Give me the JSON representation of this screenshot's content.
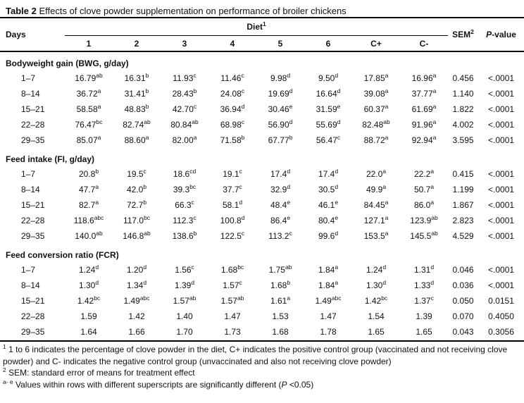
{
  "colors": {
    "text": "#111111",
    "background": "#ffffff",
    "rule": "#000000"
  },
  "title": {
    "label": "Table 2",
    "caption": " Effects of clove powder supplementation on performance of broiler chickens"
  },
  "header": {
    "days": "Days",
    "diet": "Diet",
    "diet_sup": "1",
    "diet_cols": [
      "1",
      "2",
      "3",
      "4",
      "5",
      "6",
      "C+",
      "C-"
    ],
    "sem": "SEM",
    "sem_sup": "2",
    "p_italic": "P",
    "p_rest": "-value"
  },
  "sections": [
    {
      "label": "Bodyweight gain (BWG, g/day)",
      "rows": [
        {
          "days": "1–7",
          "cells": [
            {
              "v": "16.79",
              "s": "ab"
            },
            {
              "v": "16.31",
              "s": "b"
            },
            {
              "v": "11.93",
              "s": "c"
            },
            {
              "v": "11.46",
              "s": "c"
            },
            {
              "v": "9.98",
              "s": "d"
            },
            {
              "v": "9.50",
              "s": "d"
            },
            {
              "v": "17.85",
              "s": "a"
            },
            {
              "v": "16.96",
              "s": "a"
            }
          ],
          "sem": "0.456",
          "p": "<.0001"
        },
        {
          "days": "8–14",
          "cells": [
            {
              "v": "36.72",
              "s": "a"
            },
            {
              "v": "31.41",
              "s": "b"
            },
            {
              "v": "28.43",
              "s": "b"
            },
            {
              "v": "24.08",
              "s": "c"
            },
            {
              "v": "19.69",
              "s": "d"
            },
            {
              "v": "16.64",
              "s": "d"
            },
            {
              "v": "39.08",
              "s": "a"
            },
            {
              "v": "37.77",
              "s": "a"
            }
          ],
          "sem": "1.140",
          "p": "<.0001"
        },
        {
          "days": "15–21",
          "cells": [
            {
              "v": "58.58",
              "s": "a"
            },
            {
              "v": "48.83",
              "s": "b"
            },
            {
              "v": "42.70",
              "s": "c"
            },
            {
              "v": "36.94",
              "s": "d"
            },
            {
              "v": "30.46",
              "s": "e"
            },
            {
              "v": "31.59",
              "s": "e"
            },
            {
              "v": "60.37",
              "s": "a"
            },
            {
              "v": "61.69",
              "s": "a"
            }
          ],
          "sem": "1.822",
          "p": "<.0001"
        },
        {
          "days": "22–28",
          "cells": [
            {
              "v": "76.47",
              "s": "bc"
            },
            {
              "v": "82.74",
              "s": "ab"
            },
            {
              "v": "80.84",
              "s": "ab"
            },
            {
              "v": "68.98",
              "s": "c"
            },
            {
              "v": "56.90",
              "s": "d"
            },
            {
              "v": "55.69",
              "s": "d"
            },
            {
              "v": "82.48",
              "s": "ab"
            },
            {
              "v": "91.96",
              "s": "a"
            }
          ],
          "sem": "4.002",
          "p": "<.0001"
        },
        {
          "days": "29–35",
          "cells": [
            {
              "v": "85.07",
              "s": "a"
            },
            {
              "v": "88.60",
              "s": "a"
            },
            {
              "v": "82.00",
              "s": "a"
            },
            {
              "v": "71.58",
              "s": "b"
            },
            {
              "v": "67.77",
              "s": "b"
            },
            {
              "v": "56.47",
              "s": "c"
            },
            {
              "v": "88.72",
              "s": "a"
            },
            {
              "v": "92.94",
              "s": "a"
            }
          ],
          "sem": "3.595",
          "p": "<.0001"
        }
      ]
    },
    {
      "label": "Feed intake (FI, g/day)",
      "rows": [
        {
          "days": "1–7",
          "cells": [
            {
              "v": "20.8",
              "s": "b"
            },
            {
              "v": "19.5",
              "s": "c"
            },
            {
              "v": "18.6",
              "s": "cd"
            },
            {
              "v": "19.1",
              "s": "c"
            },
            {
              "v": "17.4",
              "s": "d"
            },
            {
              "v": "17.4",
              "s": "d"
            },
            {
              "v": "22.0",
              "s": "a"
            },
            {
              "v": "22.2",
              "s": "a"
            }
          ],
          "sem": "0.415",
          "p": "<.0001"
        },
        {
          "days": "8–14",
          "cells": [
            {
              "v": "47.7",
              "s": "a"
            },
            {
              "v": "42.0",
              "s": "b"
            },
            {
              "v": "39.3",
              "s": "bc"
            },
            {
              "v": "37.7",
              "s": "c"
            },
            {
              "v": "32.9",
              "s": "d"
            },
            {
              "v": "30.5",
              "s": "d"
            },
            {
              "v": "49.9",
              "s": "a"
            },
            {
              "v": "50.7",
              "s": "a"
            }
          ],
          "sem": "1.199",
          "p": "<.0001"
        },
        {
          "days": "15–21",
          "cells": [
            {
              "v": "82.7",
              "s": "a"
            },
            {
              "v": "72.7",
              "s": "b"
            },
            {
              "v": "66.3",
              "s": "c"
            },
            {
              "v": "58.1",
              "s": "d"
            },
            {
              "v": "48.4",
              "s": "e"
            },
            {
              "v": "46.1",
              "s": "e"
            },
            {
              "v": "84.45",
              "s": "a"
            },
            {
              "v": "86.0",
              "s": "a"
            }
          ],
          "sem": "1.867",
          "p": "<.0001"
        },
        {
          "days": "22–28",
          "cells": [
            {
              "v": "118.6",
              "s": "abc"
            },
            {
              "v": "117.0",
              "s": "bc"
            },
            {
              "v": "112.3",
              "s": "c"
            },
            {
              "v": "100.8",
              "s": "d"
            },
            {
              "v": "86.4",
              "s": "e"
            },
            {
              "v": "80.4",
              "s": "e"
            },
            {
              "v": "127.1",
              "s": "a"
            },
            {
              "v": "123.9",
              "s": "ab"
            }
          ],
          "sem": "2.823",
          "p": "<.0001"
        },
        {
          "days": "29–35",
          "cells": [
            {
              "v": "140.0",
              "s": "ab"
            },
            {
              "v": "146.8",
              "s": "ab"
            },
            {
              "v": "138.6",
              "s": "b"
            },
            {
              "v": "122.5",
              "s": "c"
            },
            {
              "v": "113.2",
              "s": "c"
            },
            {
              "v": "99.6",
              "s": "d"
            },
            {
              "v": "153.5",
              "s": "a"
            },
            {
              "v": "145.5",
              "s": "ab"
            }
          ],
          "sem": "4.529",
          "p": "<.0001"
        }
      ]
    },
    {
      "label": "Feed conversion ratio (FCR)",
      "rows": [
        {
          "days": "1–7",
          "cells": [
            {
              "v": "1.24",
              "s": "d"
            },
            {
              "v": "1.20",
              "s": "d"
            },
            {
              "v": "1.56",
              "s": "c"
            },
            {
              "v": "1.68",
              "s": "bc"
            },
            {
              "v": "1.75",
              "s": "ab"
            },
            {
              "v": "1.84",
              "s": "a"
            },
            {
              "v": "1.24",
              "s": "d"
            },
            {
              "v": "1.31",
              "s": "d"
            }
          ],
          "sem": "0.046",
          "p": "<.0001"
        },
        {
          "days": "8–14",
          "cells": [
            {
              "v": "1.30",
              "s": "d"
            },
            {
              "v": "1.34",
              "s": "d"
            },
            {
              "v": "1.39",
              "s": "d"
            },
            {
              "v": "1.57",
              "s": "c"
            },
            {
              "v": "1.68",
              "s": "b"
            },
            {
              "v": "1.84",
              "s": "a"
            },
            {
              "v": "1.30",
              "s": "d"
            },
            {
              "v": "1.33",
              "s": "d"
            }
          ],
          "sem": "0.036",
          "p": "<.0001"
        },
        {
          "days": "15–21",
          "cells": [
            {
              "v": "1.42",
              "s": "bc"
            },
            {
              "v": "1.49",
              "s": "abc"
            },
            {
              "v": "1.57",
              "s": "ab"
            },
            {
              "v": "1.57",
              "s": "ab"
            },
            {
              "v": "1.61",
              "s": "a"
            },
            {
              "v": "1.49",
              "s": "abc"
            },
            {
              "v": "1.42",
              "s": "bc"
            },
            {
              "v": "1.37",
              "s": "c"
            }
          ],
          "sem": "0.050",
          "p": "0.0151"
        },
        {
          "days": "22–28",
          "cells": [
            {
              "v": "1.59",
              "s": ""
            },
            {
              "v": "1.42",
              "s": ""
            },
            {
              "v": "1.40",
              "s": ""
            },
            {
              "v": "1.47",
              "s": ""
            },
            {
              "v": "1.53",
              "s": ""
            },
            {
              "v": "1.47",
              "s": ""
            },
            {
              "v": "1.54",
              "s": ""
            },
            {
              "v": "1.39",
              "s": ""
            }
          ],
          "sem": "0.070",
          "p": "0.4050"
        },
        {
          "days": "29–35",
          "cells": [
            {
              "v": "1.64",
              "s": ""
            },
            {
              "v": "1.66",
              "s": ""
            },
            {
              "v": "1.70",
              "s": ""
            },
            {
              "v": "1.73",
              "s": ""
            },
            {
              "v": "1.68",
              "s": ""
            },
            {
              "v": "1.78",
              "s": ""
            },
            {
              "v": "1.65",
              "s": ""
            },
            {
              "v": "1.65",
              "s": ""
            }
          ],
          "sem": "0.043",
          "p": "0.3056"
        }
      ]
    }
  ],
  "footnotes": {
    "f1_sup": "1",
    "f1_text": " 1 to 6 indicates the percentage of clove powder in the diet, C+ indicates the positive control group (vaccinated and not receiving clove powder) and C- indicates the negative control group (unvaccinated and also not receiving clove powder)",
    "f2_sup": "2",
    "f2_text": " SEM: standard error of means for treatment effect",
    "f3_sup": "a- e",
    "f3_text": " Values within rows with different superscripts are significantly different (",
    "f3_p": "P",
    "f3_tail": " <0.05)"
  }
}
